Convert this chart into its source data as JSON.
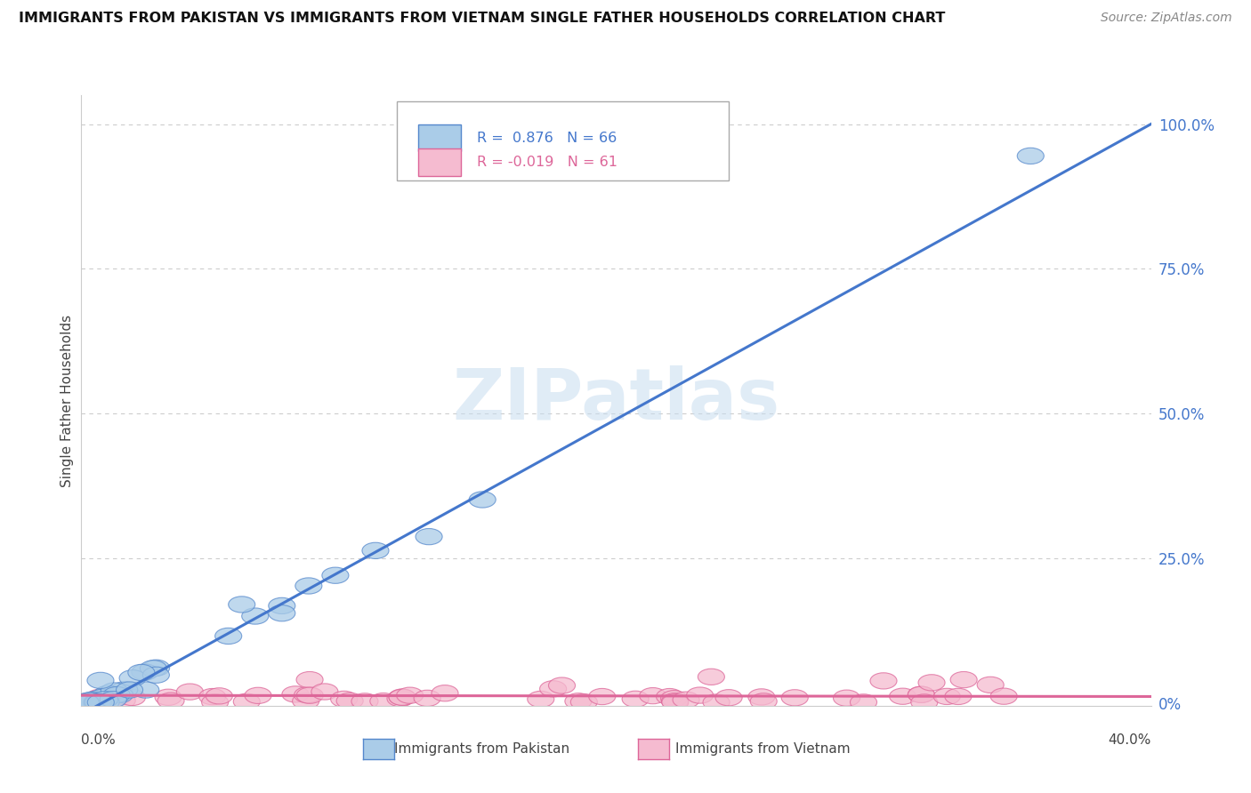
{
  "title": "IMMIGRANTS FROM PAKISTAN VS IMMIGRANTS FROM VIETNAM SINGLE FATHER HOUSEHOLDS CORRELATION CHART",
  "source": "Source: ZipAtlas.com",
  "ylabel": "Single Father Households",
  "watermark": "ZIPatlas",
  "blue_color": "#aacce8",
  "blue_edge_color": "#5588cc",
  "blue_line_color": "#4477cc",
  "pink_color": "#f5bbd0",
  "pink_edge_color": "#dd6699",
  "pink_line_color": "#dd6699",
  "ytick_color": "#4477cc",
  "xlim": [
    0.0,
    0.4
  ],
  "ylim": [
    -0.005,
    1.05
  ],
  "yticks": [
    0.0,
    0.25,
    0.5,
    0.75,
    1.0
  ],
  "ytick_labels": [
    "0%",
    "25.0%",
    "50.0%",
    "75.0%",
    "100.0%"
  ],
  "pak_slope": 2.55,
  "pak_intercept": -0.02,
  "viet_slope": -0.005,
  "viet_intercept": 0.013
}
